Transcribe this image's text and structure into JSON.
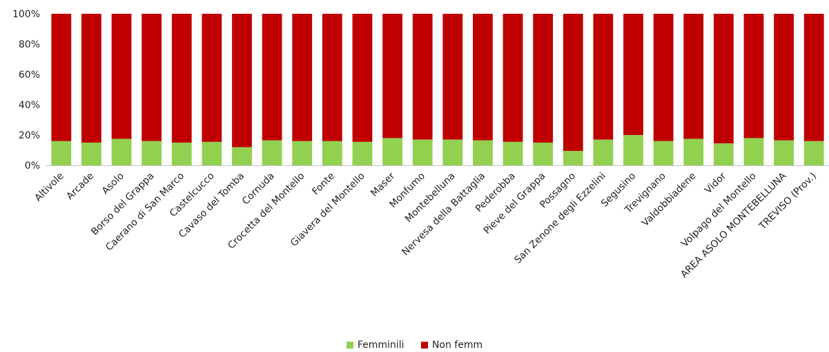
{
  "chart_data": {
    "type": "bar",
    "stacked": true,
    "percent_stacked": true,
    "categories": [
      "Altivole",
      "Arcade",
      "Asolo",
      "Borso del Grappa",
      "Caerano di San Marco",
      "Castelcucco",
      "Cavaso del Tomba",
      "Cornuda",
      "Crocetta del Montello",
      "Fonte",
      "Giavera del Montello",
      "Maser",
      "Monfumo",
      "Montebelluna",
      "Nervesa della Battaglia",
      "Pederobba",
      "Pieve del Grappa",
      "Possagno",
      "San Zenone degli Ezzelini",
      "Segusino",
      "Trevignano",
      "Valdobbiadene",
      "Vidor",
      "Volpago del Montello",
      "AREA ASOLO MONTEBELLUNA",
      "TREVISO (Prov.)"
    ],
    "series": [
      {
        "name": "Femminili",
        "color": "#92d050",
        "values": [
          16,
          15,
          17.5,
          16,
          15,
          15.5,
          12,
          16.5,
          16,
          16,
          15.5,
          18,
          17,
          17,
          16.5,
          15.5,
          15,
          9.5,
          17,
          20,
          16,
          17.5,
          14.5,
          18,
          16.5,
          16
        ]
      },
      {
        "name": "Non femm",
        "color": "#c00000",
        "values": [
          84,
          85,
          82.5,
          84,
          85,
          84.5,
          88,
          83.5,
          84,
          84,
          84.5,
          82,
          83,
          83,
          83.5,
          84.5,
          85,
          90.5,
          83,
          80,
          84,
          82.5,
          85.5,
          82,
          83.5,
          84
        ]
      }
    ],
    "y_ticks": [
      "0%",
      "20%",
      "40%",
      "60%",
      "80%",
      "100%"
    ],
    "ylim": [
      0,
      100
    ],
    "grid": false,
    "legend_position": "bottom"
  }
}
